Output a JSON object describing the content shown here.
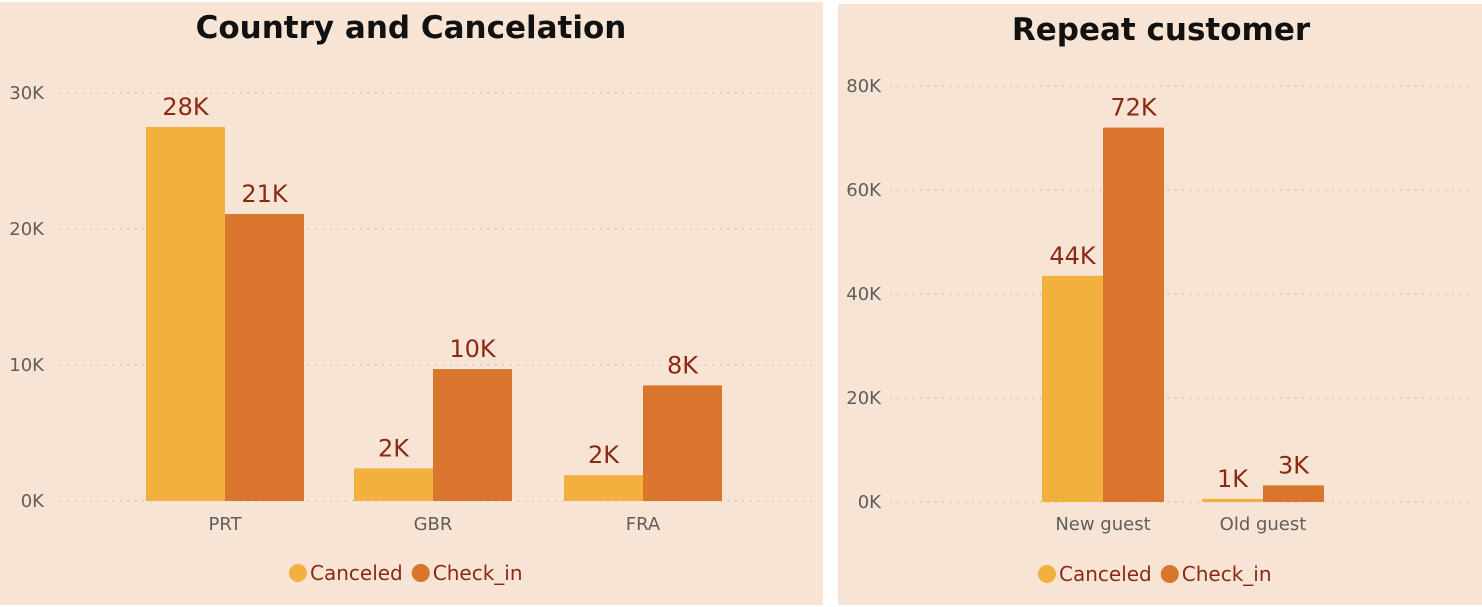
{
  "chart_data": [
    {
      "type": "bar",
      "title": "Country and Cancelation",
      "categories": [
        "PRT",
        "GBR",
        "FRA"
      ],
      "series": [
        {
          "name": "Canceled",
          "values": [
            27500,
            2400,
            1900
          ],
          "labels": [
            "28K",
            "2K",
            "2K"
          ],
          "color": "#f2b03e"
        },
        {
          "name": "Check_in",
          "values": [
            21100,
            9700,
            8500
          ],
          "labels": [
            "21K",
            "10K",
            "8K"
          ],
          "color": "#d9752c"
        }
      ],
      "yticks": [
        "0K",
        "10K",
        "20K",
        "30K"
      ],
      "ylim": [
        0,
        30000
      ],
      "grid": true,
      "legend_position": "bottom-center"
    },
    {
      "type": "bar",
      "title": "Repeat customer",
      "categories": [
        "New guest",
        "Old guest"
      ],
      "series": [
        {
          "name": "Canceled",
          "values": [
            43500,
            600
          ],
          "labels": [
            "44K",
            "1K"
          ],
          "color": "#f2b03e"
        },
        {
          "name": "Check_in",
          "values": [
            72000,
            3200
          ],
          "labels": [
            "72K",
            "3K"
          ],
          "color": "#d9752c"
        }
      ],
      "yticks": [
        "0K",
        "20K",
        "40K",
        "60K",
        "80K"
      ],
      "ylim": [
        0,
        80000
      ],
      "grid": true,
      "legend_position": "bottom-center"
    }
  ]
}
